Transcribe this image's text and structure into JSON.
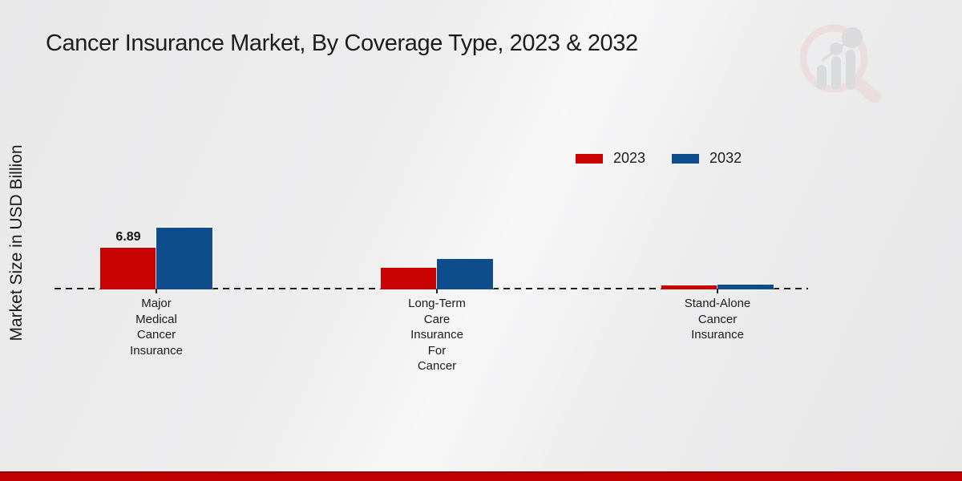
{
  "header": {
    "title": "Cancer Insurance Market, By Coverage Type, 2023 & 2032"
  },
  "axes": {
    "y_label": "Market Size in USD Billion"
  },
  "legend": {
    "position": "top-right",
    "items": [
      {
        "label": "2023",
        "color": "#c80101"
      },
      {
        "label": "2032",
        "color": "#0d4d8c"
      }
    ]
  },
  "watermark": {
    "icon": "market-research-future-logo"
  },
  "brand": {
    "accent_red": "#c00101",
    "accent_dark_red": "#8f0606"
  },
  "chart_data": {
    "type": "bar",
    "title": "Cancer Insurance Market, By Coverage Type, 2023 & 2032",
    "xlabel": "",
    "ylabel": "Market Size in USD Billion",
    "unit": "USD Billion",
    "categories": [
      "Major Medical Cancer Insurance",
      "Long-Term Care Insurance For Cancer",
      "Stand-Alone Cancer Insurance"
    ],
    "category_label_lines": [
      [
        "Major",
        "Medical",
        "Cancer",
        "Insurance"
      ],
      [
        "Long-Term",
        "Care",
        "Insurance",
        "For",
        "Cancer"
      ],
      [
        "Stand-Alone",
        "Cancer",
        "Insurance"
      ]
    ],
    "series": [
      {
        "name": "2023",
        "color": "#c80101",
        "values": [
          6.89,
          3.6,
          0.65
        ],
        "data_labels": [
          "6.89",
          null,
          null
        ]
      },
      {
        "name": "2032",
        "color": "#0d4d8c",
        "values": [
          10.2,
          5.0,
          0.85
        ],
        "data_labels": [
          null,
          null,
          null
        ]
      }
    ],
    "ylim": [
      0,
      11
    ],
    "baseline": 0,
    "baseline_style": "dashed",
    "gridlines": false,
    "legend_position": "top-right"
  }
}
